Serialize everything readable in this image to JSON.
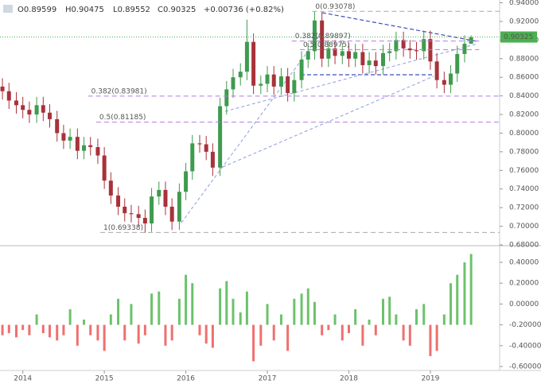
{
  "header": [
    "O0.89599",
    "H0.90475",
    "L0.89552",
    "C0.90325",
    "+0.00736 (+0.82%)"
  ],
  "chart_data": [
    {
      "type": "candlestick",
      "x": [
        2013.75,
        2013.83,
        2013.92,
        2014.0,
        2014.08,
        2014.17,
        2014.25,
        2014.33,
        2014.42,
        2014.5,
        2014.58,
        2014.67,
        2014.75,
        2014.83,
        2014.92,
        2015.0,
        2015.08,
        2015.17,
        2015.25,
        2015.33,
        2015.42,
        2015.5,
        2015.58,
        2015.67,
        2015.75,
        2015.83,
        2015.92,
        2016.0,
        2016.08,
        2016.17,
        2016.25,
        2016.33,
        2016.42,
        2016.5,
        2016.58,
        2016.67,
        2016.75,
        2016.83,
        2016.92,
        2017.0,
        2017.08,
        2017.17,
        2017.25,
        2017.33,
        2017.42,
        2017.5,
        2017.58,
        2017.67,
        2017.75,
        2017.83,
        2017.92,
        2018.0,
        2018.08,
        2018.17,
        2018.25,
        2018.33,
        2018.42,
        2018.5,
        2018.58,
        2018.67,
        2018.75,
        2018.83,
        2018.92,
        2019.0,
        2019.08,
        2019.17,
        2019.25,
        2019.33,
        2019.42,
        2019.5
      ],
      "open": [
        0.85,
        0.845,
        0.835,
        0.83,
        0.825,
        0.82,
        0.83,
        0.822,
        0.815,
        0.8,
        0.792,
        0.796,
        0.781,
        0.787,
        0.785,
        0.776,
        0.749,
        0.733,
        0.721,
        0.714,
        0.713,
        0.709,
        0.703,
        0.732,
        0.739,
        0.721,
        0.705,
        0.737,
        0.759,
        0.789,
        0.788,
        0.78,
        0.763,
        0.829,
        0.847,
        0.86,
        0.866,
        0.898,
        0.851,
        0.853,
        0.863,
        0.85,
        0.861,
        0.843,
        0.857,
        0.879,
        0.888,
        0.921,
        0.88,
        0.891,
        0.883,
        0.888,
        0.88,
        0.887,
        0.873,
        0.878,
        0.872,
        0.886,
        0.888,
        0.9,
        0.891,
        0.889,
        0.888,
        0.901,
        0.877,
        0.857,
        0.852,
        0.864,
        0.885,
        0.896
      ],
      "high": [
        0.859,
        0.854,
        0.844,
        0.839,
        0.834,
        0.839,
        0.839,
        0.831,
        0.824,
        0.809,
        0.805,
        0.805,
        0.796,
        0.796,
        0.794,
        0.785,
        0.758,
        0.742,
        0.73,
        0.723,
        0.722,
        0.718,
        0.741,
        0.748,
        0.748,
        0.73,
        0.746,
        0.768,
        0.798,
        0.798,
        0.797,
        0.789,
        0.838,
        0.856,
        0.869,
        0.875,
        0.922,
        0.907,
        0.862,
        0.872,
        0.872,
        0.87,
        0.87,
        0.866,
        0.888,
        0.897,
        0.931,
        0.93,
        0.9,
        0.9,
        0.897,
        0.897,
        0.896,
        0.896,
        0.887,
        0.887,
        0.895,
        0.897,
        0.909,
        0.909,
        0.9,
        0.898,
        0.91,
        0.91,
        0.886,
        0.866,
        0.873,
        0.894,
        0.905,
        0.905
      ],
      "low": [
        0.836,
        0.826,
        0.821,
        0.816,
        0.811,
        0.811,
        0.813,
        0.806,
        0.791,
        0.783,
        0.783,
        0.772,
        0.772,
        0.776,
        0.767,
        0.74,
        0.724,
        0.712,
        0.705,
        0.704,
        0.7,
        0.693,
        0.694,
        0.723,
        0.712,
        0.696,
        0.696,
        0.728,
        0.75,
        0.779,
        0.771,
        0.754,
        0.754,
        0.82,
        0.838,
        0.851,
        0.857,
        0.842,
        0.842,
        0.844,
        0.841,
        0.841,
        0.834,
        0.834,
        0.848,
        0.87,
        0.879,
        0.871,
        0.871,
        0.874,
        0.874,
        0.871,
        0.871,
        0.864,
        0.864,
        0.863,
        0.863,
        0.877,
        0.879,
        0.882,
        0.88,
        0.879,
        0.879,
        0.868,
        0.848,
        0.843,
        0.843,
        0.855,
        0.876,
        0.896
      ],
      "close": [
        0.845,
        0.835,
        0.83,
        0.825,
        0.82,
        0.83,
        0.822,
        0.815,
        0.8,
        0.792,
        0.796,
        0.781,
        0.787,
        0.785,
        0.776,
        0.749,
        0.733,
        0.721,
        0.714,
        0.713,
        0.709,
        0.703,
        0.732,
        0.739,
        0.721,
        0.705,
        0.737,
        0.759,
        0.789,
        0.788,
        0.78,
        0.763,
        0.829,
        0.847,
        0.86,
        0.866,
        0.898,
        0.851,
        0.853,
        0.863,
        0.85,
        0.861,
        0.843,
        0.857,
        0.879,
        0.888,
        0.921,
        0.88,
        0.891,
        0.883,
        0.888,
        0.88,
        0.887,
        0.873,
        0.878,
        0.872,
        0.886,
        0.888,
        0.9,
        0.891,
        0.889,
        0.888,
        0.901,
        0.877,
        0.857,
        0.852,
        0.864,
        0.885,
        0.896,
        0.903
      ],
      "up_color": "#3f9b4e",
      "down_color": "#a8323a",
      "xlim": [
        2013.72,
        2019.85
      ],
      "ylim": [
        0.68,
        0.943
      ],
      "yticks": [
        {
          "value": 0.94,
          "label": "0.94000"
        },
        {
          "value": 0.92,
          "label": "0.92000"
        },
        {
          "value": 0.9,
          "label": "0.90000"
        },
        {
          "value": 0.88,
          "label": "0.88000"
        },
        {
          "value": 0.86,
          "label": "0.86000"
        },
        {
          "value": 0.84,
          "label": "0.84000"
        },
        {
          "value": 0.82,
          "label": "0.82000"
        },
        {
          "value": 0.8,
          "label": "0.80000"
        },
        {
          "value": 0.78,
          "label": "0.78000"
        },
        {
          "value": 0.76,
          "label": "0.76000"
        },
        {
          "value": 0.74,
          "label": "0.74000"
        },
        {
          "value": 0.72,
          "label": "0.72000"
        },
        {
          "value": 0.7,
          "label": "0.70000"
        },
        {
          "value": 0.68,
          "label": "0.68000"
        }
      ],
      "last_price": {
        "value": 0.90325,
        "label": "0.90325",
        "color": "#4caf50"
      },
      "levels": [
        {
          "label": "0(0.93078)",
          "value": 0.93078,
          "from": 2017.55,
          "to": 2019.85,
          "color": "#aaaaaa"
        },
        {
          "label": "0.382(0.89897)",
          "value": 0.89897,
          "from": 2017.3,
          "to": 2019.6,
          "color": "#b57be0"
        },
        {
          "label": "0.5(0.88975)",
          "value": 0.88975,
          "from": 2017.4,
          "to": 2019.6,
          "color": "#b57be0"
        },
        {
          "label": "0.382(0.83981)",
          "value": 0.83981,
          "from": 2014.8,
          "to": 2019.85,
          "color": "#b57be0"
        },
        {
          "label": "0.5(0.81185)",
          "value": 0.81185,
          "from": 2014.9,
          "to": 2019.85,
          "color": "#b57be0"
        },
        {
          "label": "1(0.69338)",
          "value": 0.69338,
          "from": 2014.95,
          "to": 2019.85,
          "color": "#aaaaaa"
        }
      ]
    },
    {
      "type": "bar",
      "x": [
        2013.75,
        2013.83,
        2013.92,
        2014.0,
        2014.08,
        2014.17,
        2014.25,
        2014.33,
        2014.42,
        2014.5,
        2014.58,
        2014.67,
        2014.75,
        2014.83,
        2014.92,
        2015.0,
        2015.08,
        2015.17,
        2015.25,
        2015.33,
        2015.42,
        2015.5,
        2015.58,
        2015.67,
        2015.75,
        2015.83,
        2015.92,
        2016.0,
        2016.08,
        2016.17,
        2016.25,
        2016.33,
        2016.42,
        2016.5,
        2016.58,
        2016.67,
        2016.75,
        2016.83,
        2016.92,
        2017.0,
        2017.08,
        2017.17,
        2017.25,
        2017.33,
        2017.42,
        2017.5,
        2017.58,
        2017.67,
        2017.75,
        2017.83,
        2017.92,
        2018.0,
        2018.08,
        2018.17,
        2018.25,
        2018.33,
        2018.42,
        2018.5,
        2018.58,
        2018.67,
        2018.75,
        2018.83,
        2018.92,
        2019.0,
        2019.08,
        2019.17,
        2019.25,
        2019.33,
        2019.42,
        2019.5
      ],
      "values": [
        -0.3,
        -0.28,
        -0.32,
        -0.25,
        -0.3,
        -0.1,
        -0.28,
        -0.32,
        -0.35,
        -0.3,
        -0.05,
        -0.4,
        -0.15,
        -0.3,
        -0.35,
        -0.45,
        -0.1,
        0.05,
        -0.35,
        0.0,
        -0.38,
        -0.3,
        0.1,
        0.12,
        -0.4,
        -0.35,
        0.05,
        0.28,
        0.2,
        -0.3,
        -0.38,
        -0.42,
        0.15,
        0.22,
        0.05,
        -0.08,
        0.12,
        -0.55,
        -0.4,
        0.0,
        -0.35,
        -0.1,
        -0.45,
        0.05,
        0.1,
        0.15,
        0.02,
        -0.3,
        -0.25,
        -0.1,
        -0.35,
        -0.28,
        -0.05,
        -0.4,
        -0.15,
        -0.3,
        0.05,
        0.07,
        -0.1,
        -0.35,
        -0.4,
        -0.05,
        0.0,
        -0.5,
        -0.45,
        -0.1,
        0.2,
        0.28,
        0.4,
        0.48
      ],
      "up_color": "#6cc26c",
      "down_color": "#ef6f6f",
      "xlim": [
        2013.72,
        2019.85
      ],
      "ylim": [
        -0.638,
        0.537
      ],
      "yticks": [
        {
          "value": 0.4,
          "label": "0.40000"
        },
        {
          "value": 0.2,
          "label": "0.20000"
        },
        {
          "value": 0,
          "label": "0.00000"
        },
        {
          "value": -0.2,
          "label": "-0.20000"
        },
        {
          "value": -0.4,
          "label": "-0.40000"
        },
        {
          "value": -0.6,
          "label": "-0.60000"
        }
      ],
      "xticks": [
        2014,
        2015,
        2016,
        2017,
        2018,
        2019
      ]
    }
  ]
}
